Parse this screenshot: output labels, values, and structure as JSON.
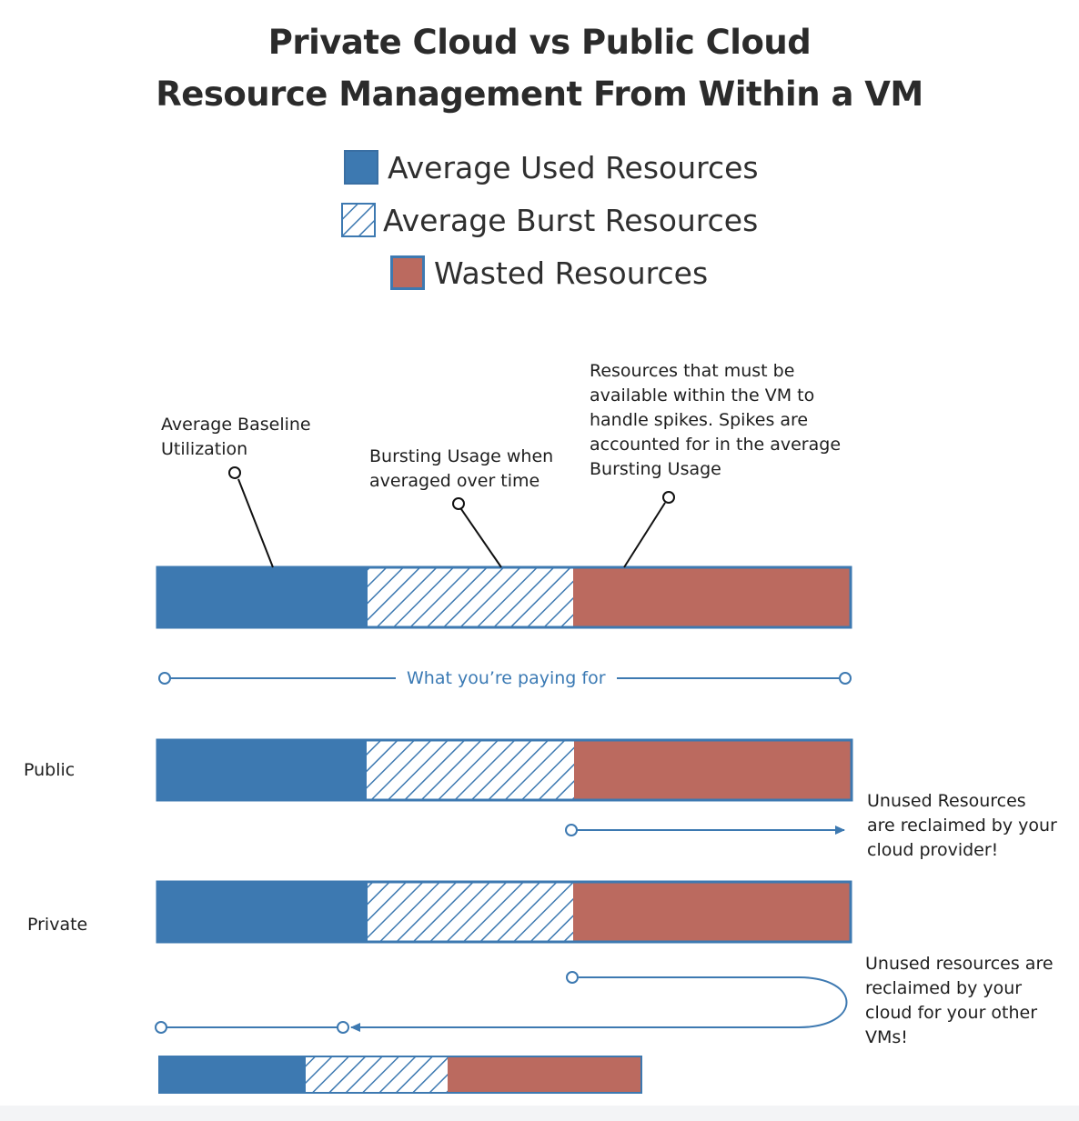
{
  "title": {
    "line1": "Private Cloud vs Public Cloud",
    "line2": "Resource Management From Within a VM"
  },
  "legend": [
    {
      "label": "Average Used Resources",
      "pattern": "solid",
      "color": "#3d79b1"
    },
    {
      "label": "Average Burst Resources",
      "pattern": "hatched",
      "color": "#3d79b1"
    },
    {
      "label": "Wasted Resources",
      "pattern": "solid",
      "color": "#bb6a5f"
    }
  ],
  "annotations": {
    "baseline": [
      "Average Baseline",
      "Utilization"
    ],
    "bursting": [
      "Bursting Usage when",
      "averaged over time"
    ],
    "spikes": [
      "Resources that must be",
      "available within the VM to",
      "handle spikes. Spikes are",
      "accounted for in the average",
      "Bursting Usage"
    ]
  },
  "paying_label": "What you’re paying for",
  "rows": {
    "public": "Public",
    "private": "Private"
  },
  "notes": {
    "public": [
      "Unused Resources",
      "are reclaimed by your",
      "cloud provider!"
    ],
    "private": [
      "Unused resources are",
      "reclaimed by your",
      "cloud for your other",
      "VMs!"
    ]
  },
  "colors": {
    "used": "#3d79b1",
    "burst_stripe": "#3d79b1",
    "wasted": "#bb6a5f",
    "border": "#3d79b1",
    "line": "#3d79b1"
  }
}
